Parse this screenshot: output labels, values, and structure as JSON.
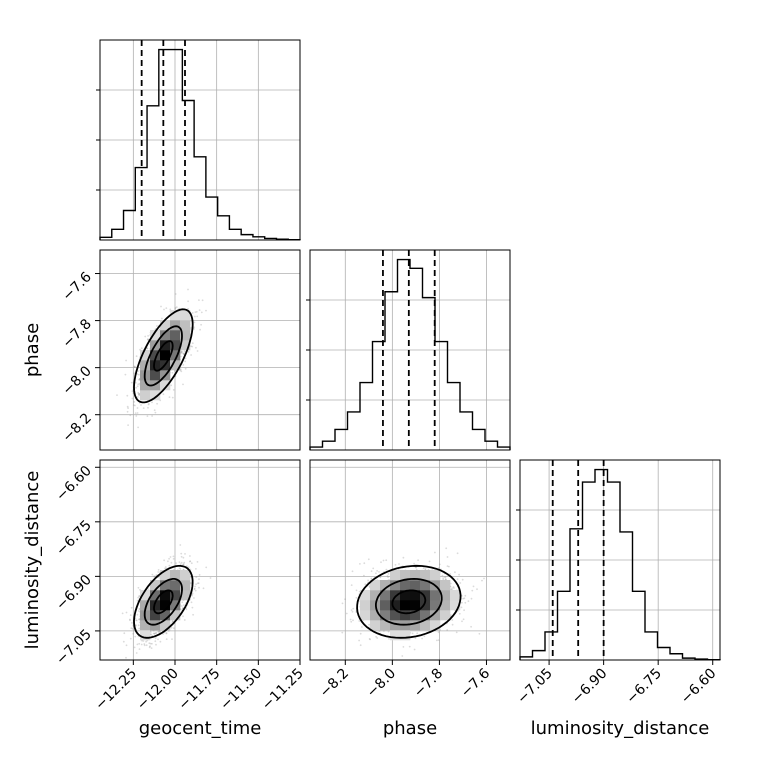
{
  "chart_data": {
    "type": "corner",
    "parameters": [
      {
        "name": "geocent_time",
        "label": "geocent_time",
        "range": [
          -12.45,
          -11.25
        ],
        "ticks": [
          -12.25,
          -12.0,
          -11.75,
          -11.5,
          -11.25
        ],
        "tick_labels": [
          "−12.25",
          "−12.00",
          "−11.75",
          "−11.50",
          "−11.25"
        ],
        "histogram": [
          1,
          4,
          11,
          27,
          50,
          71,
          71,
          52,
          31,
          16,
          9,
          4,
          2,
          1.2,
          0.6,
          0.3,
          0.1
        ],
        "quantiles": [
          -12.2,
          -12.07,
          -11.94
        ]
      },
      {
        "name": "phase",
        "label": "phase",
        "range": [
          -8.35,
          -7.5
        ],
        "ticks": [
          -8.2,
          -8.0,
          -7.8,
          -7.6
        ],
        "tick_labels": [
          "−8.2",
          "−8.0",
          "−7.8",
          "−7.6"
        ],
        "histogram": [
          1,
          3,
          7,
          13,
          23,
          37,
          54,
          65,
          62,
          52,
          37,
          23,
          13,
          7,
          3,
          1
        ],
        "quantiles": [
          -8.04,
          -7.93,
          -7.82
        ]
      },
      {
        "name": "luminosity_distance",
        "label": "luminosity_distance",
        "range": [
          -7.13,
          -6.58
        ],
        "ticks": [
          -7.05,
          -6.9,
          -6.75,
          -6.6
        ],
        "tick_labels": [
          "−7.05",
          "−6.90",
          "−6.75",
          "−6.60"
        ],
        "histogram": [
          1,
          3,
          9,
          22,
          42,
          57,
          61,
          57,
          41,
          22,
          9,
          4,
          2,
          0.6,
          0.3,
          0.1
        ],
        "quantiles": [
          -7.04,
          -6.97,
          -6.9
        ]
      }
    ],
    "pair_params": {
      "1-0": {
        "mean": [
          -12.07,
          -7.95
        ],
        "sd": [
          0.08,
          0.09
        ],
        "rho": 0.68
      },
      "2-0": {
        "mean": [
          -12.07,
          -6.97
        ],
        "sd": [
          0.08,
          0.045
        ],
        "rho": 0.55
      },
      "2-1": {
        "mean": [
          -7.93,
          -6.97
        ],
        "sd": [
          0.1,
          0.045
        ],
        "rho": 0.15
      }
    },
    "grid": true,
    "quantile_style": "dashed",
    "colors": {
      "ink": "#000000",
      "grid": "#b0b0b0",
      "scatter": "#999999"
    }
  }
}
